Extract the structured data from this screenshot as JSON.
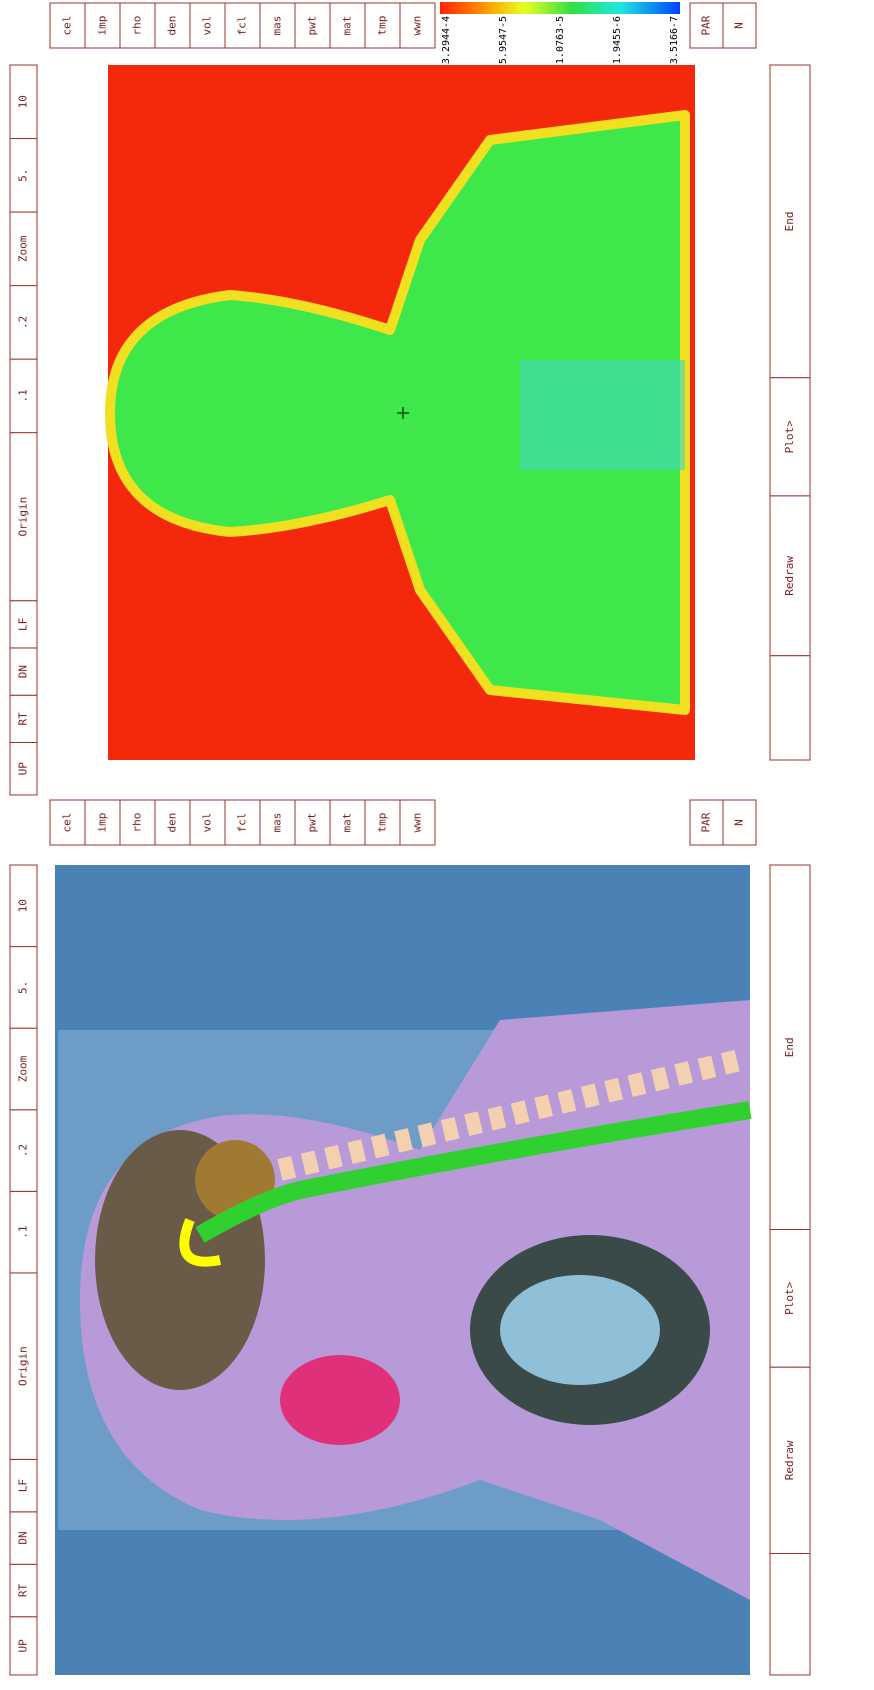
{
  "panels": [
    {
      "nav": [
        "UP",
        "RT",
        "DN",
        "LF",
        "Origin",
        ".1",
        ".2",
        "Zoom",
        "5.",
        "10"
      ],
      "params": [
        "cel",
        "imp",
        "rho",
        "den",
        "vol",
        "fcl",
        "mas",
        "pwt",
        "mat",
        "tmp",
        "wwn"
      ],
      "par": [
        "PAR",
        "N"
      ],
      "actions": [
        "Redraw",
        "Plot>",
        "End"
      ],
      "colorbar": [
        "3.2944-4",
        "5.9547-5",
        "1.0763-5",
        "1.9455-6",
        "3.5166-7"
      ]
    },
    {
      "nav": [
        "UP",
        "RT",
        "DN",
        "LF",
        "Origin",
        ".1",
        ".2",
        "Zoom",
        "5.",
        "10"
      ],
      "params": [
        "cel",
        "imp",
        "rho",
        "den",
        "vol",
        "fcl",
        "mas",
        "pwt",
        "mat",
        "tmp",
        "wwn"
      ],
      "par": [
        "PAR",
        "N"
      ],
      "actions": [
        "Redraw",
        "Plot>",
        "End"
      ]
    }
  ]
}
